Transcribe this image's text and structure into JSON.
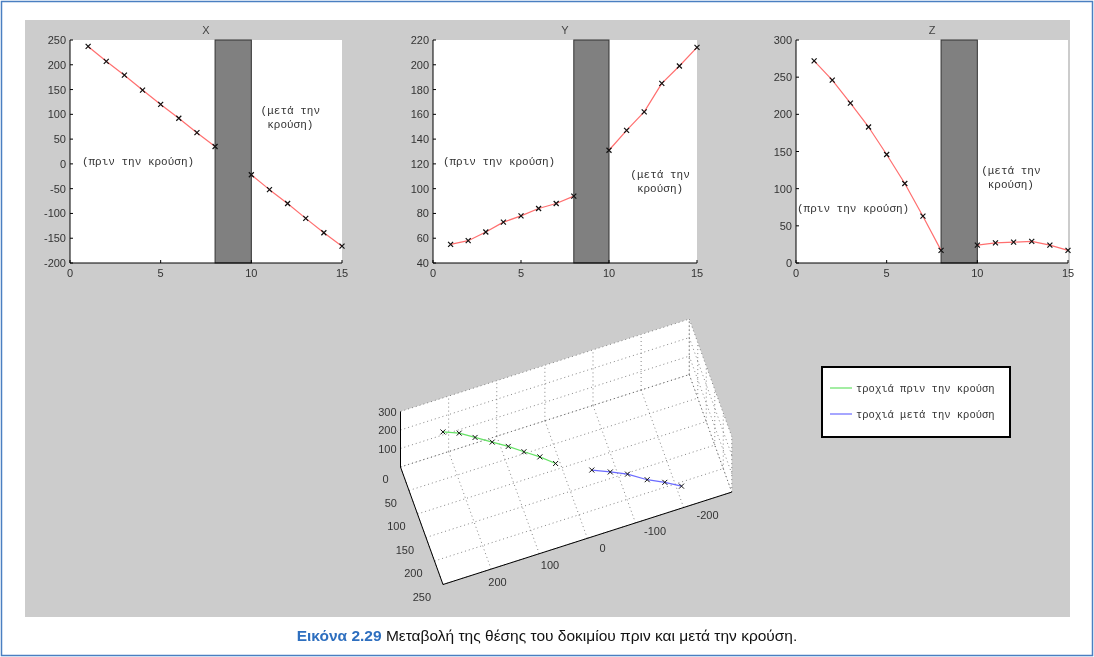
{
  "chart_data": [
    {
      "type": "line",
      "title": "X",
      "xlim": [
        0,
        15
      ],
      "xticks": [
        0,
        5,
        10,
        15
      ],
      "ylim": [
        -200,
        250
      ],
      "yticks": [
        -200,
        -150,
        -100,
        -50,
        0,
        50,
        100,
        150,
        200,
        250
      ],
      "marker": "cross",
      "line_style": "solid",
      "bands": [
        {
          "axis": "x",
          "from": 8,
          "to": 10,
          "color": "#808080"
        }
      ],
      "annotations": [
        "(πριν την κρούση)",
        "(μετά την\nκρούση)"
      ],
      "series": [
        {
          "color": "#ff6f6f",
          "x": [
            1,
            2,
            3,
            4,
            5,
            6,
            7,
            8
          ],
          "values": [
            237,
            207,
            179,
            149,
            120,
            92,
            63,
            35
          ]
        },
        {
          "color": "#ff6f6f",
          "x": [
            10,
            11,
            12,
            13,
            14,
            15
          ],
          "values": [
            -22,
            -52,
            -80,
            -110,
            -139,
            -166
          ]
        }
      ]
    },
    {
      "type": "line",
      "title": "Y",
      "xlim": [
        0,
        15
      ],
      "xticks": [
        0,
        5,
        10,
        15
      ],
      "ylim": [
        40,
        220
      ],
      "yticks": [
        40,
        60,
        80,
        100,
        120,
        140,
        160,
        180,
        200,
        220
      ],
      "marker": "cross",
      "line_style": "solid",
      "bands": [
        {
          "axis": "x",
          "from": 8,
          "to": 10,
          "color": "#808080"
        }
      ],
      "annotations": [
        "(πριν την κρούση)",
        "(μετά την\nκρούση)"
      ],
      "series": [
        {
          "color": "#ff6f6f",
          "x": [
            1,
            2,
            3,
            4,
            5,
            6,
            7,
            8
          ],
          "values": [
            55,
            58,
            65,
            73,
            78,
            84,
            88,
            94
          ]
        },
        {
          "color": "#ff6f6f",
          "x": [
            10,
            11,
            12,
            13,
            14,
            15
          ],
          "values": [
            131,
            147,
            162,
            185,
            199,
            214
          ]
        }
      ]
    },
    {
      "type": "line",
      "title": "Z",
      "xlim": [
        0,
        15
      ],
      "xticks": [
        0,
        5,
        10,
        15
      ],
      "ylim": [
        0,
        300
      ],
      "yticks": [
        0,
        50,
        100,
        150,
        200,
        250,
        300
      ],
      "marker": "cross",
      "line_style": "solid",
      "bands": [
        {
          "axis": "x",
          "from": 8,
          "to": 10,
          "color": "#808080"
        }
      ],
      "annotations": [
        "(πριν την κρούση)",
        "(μετά την\nκρούση)"
      ],
      "series": [
        {
          "color": "#ff6f6f",
          "x": [
            1,
            2,
            3,
            4,
            5,
            6,
            7,
            8
          ],
          "values": [
            272,
            246,
            215,
            183,
            146,
            107,
            63,
            17
          ]
        },
        {
          "color": "#ff6f6f",
          "x": [
            10,
            11,
            12,
            13,
            14,
            15
          ],
          "values": [
            24,
            27,
            28,
            29,
            24,
            17
          ]
        }
      ]
    },
    {
      "type": "other",
      "legend": "right",
      "series": [
        {
          "name": "τροχιά πριν την κρούση",
          "color": "#66e266"
        },
        {
          "name": "τροχιά μετά την κρούση",
          "color": "#6b6bff"
        }
      ],
      "annotations": [
        "Εικόνα 2.29",
        "Μεταβολή της θέσης του δοκιμίου πριν και μετά την κρούση.",
        "300",
        "200",
        "100",
        "0",
        "50",
        "100",
        "150",
        "200",
        "250",
        "200",
        "100",
        "0",
        "-100",
        "-200"
      ]
    }
  ]
}
